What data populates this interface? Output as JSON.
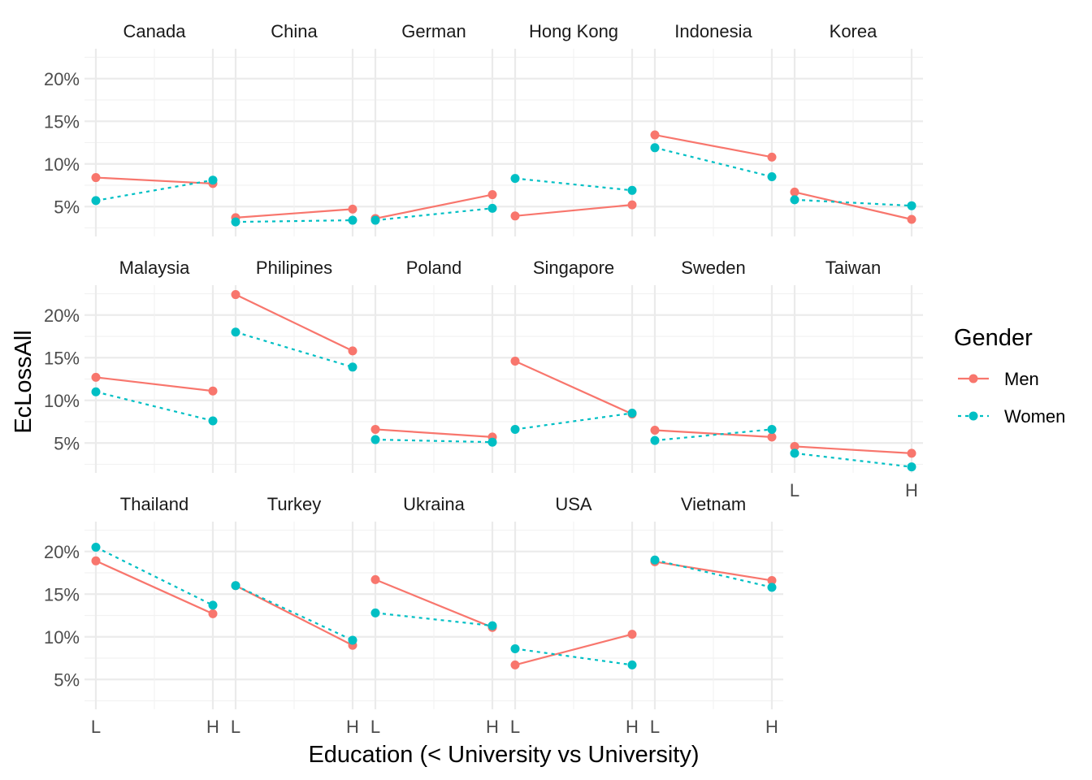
{
  "chart_data": {
    "type": "line",
    "layout": "faceted small multiples, 6 columns x 3 rows",
    "xlabel": "Education (< University vs University)",
    "ylabel": "EcLossAll",
    "x_categories": [
      "L",
      "H"
    ],
    "y_ticks": [
      5,
      10,
      15,
      20
    ],
    "y_tick_labels": [
      "5%",
      "10%",
      "15%",
      "20%"
    ],
    "ylim": [
      1.5,
      23.5
    ],
    "legend": {
      "title": "Gender",
      "position": "right",
      "items": [
        {
          "name": "Men",
          "color": "#F8766D",
          "linetype": "solid"
        },
        {
          "name": "Women",
          "color": "#00BFC4",
          "linetype": "dotted"
        }
      ]
    },
    "facets": [
      {
        "name": "Canada",
        "series": [
          {
            "name": "Men",
            "values": [
              8.4,
              7.7
            ]
          },
          {
            "name": "Women",
            "values": [
              5.7,
              8.1
            ]
          }
        ]
      },
      {
        "name": "China",
        "series": [
          {
            "name": "Men",
            "values": [
              3.7,
              4.7
            ]
          },
          {
            "name": "Women",
            "values": [
              3.2,
              3.4
            ]
          }
        ]
      },
      {
        "name": "German",
        "series": [
          {
            "name": "Men",
            "values": [
              3.6,
              6.4
            ]
          },
          {
            "name": "Women",
            "values": [
              3.4,
              4.8
            ]
          }
        ]
      },
      {
        "name": "Hong Kong",
        "series": [
          {
            "name": "Men",
            "values": [
              3.9,
              5.2
            ]
          },
          {
            "name": "Women",
            "values": [
              8.3,
              6.9
            ]
          }
        ]
      },
      {
        "name": "Indonesia",
        "series": [
          {
            "name": "Men",
            "values": [
              13.4,
              10.8
            ]
          },
          {
            "name": "Women",
            "values": [
              11.9,
              8.5
            ]
          }
        ]
      },
      {
        "name": "Korea",
        "series": [
          {
            "name": "Men",
            "values": [
              6.7,
              3.5
            ]
          },
          {
            "name": "Women",
            "values": [
              5.8,
              5.1
            ]
          }
        ]
      },
      {
        "name": "Malaysia",
        "series": [
          {
            "name": "Men",
            "values": [
              12.7,
              11.1
            ]
          },
          {
            "name": "Women",
            "values": [
              11.0,
              7.6
            ]
          }
        ]
      },
      {
        "name": "Philipines",
        "series": [
          {
            "name": "Men",
            "values": [
              22.4,
              15.8
            ]
          },
          {
            "name": "Women",
            "values": [
              18.0,
              13.9
            ]
          }
        ]
      },
      {
        "name": "Poland",
        "series": [
          {
            "name": "Men",
            "values": [
              6.6,
              5.7
            ]
          },
          {
            "name": "Women",
            "values": [
              5.4,
              5.1
            ]
          }
        ]
      },
      {
        "name": "Singapore",
        "series": [
          {
            "name": "Men",
            "values": [
              14.6,
              8.4
            ]
          },
          {
            "name": "Women",
            "values": [
              6.6,
              8.5
            ]
          }
        ]
      },
      {
        "name": "Sweden",
        "series": [
          {
            "name": "Men",
            "values": [
              6.5,
              5.7
            ]
          },
          {
            "name": "Women",
            "values": [
              5.3,
              6.6
            ]
          }
        ]
      },
      {
        "name": "Taiwan",
        "series": [
          {
            "name": "Men",
            "values": [
              4.6,
              3.8
            ]
          },
          {
            "name": "Women",
            "values": [
              3.8,
              2.2
            ]
          }
        ]
      },
      {
        "name": "Thailand",
        "series": [
          {
            "name": "Men",
            "values": [
              18.9,
              12.7
            ]
          },
          {
            "name": "Women",
            "values": [
              20.5,
              13.7
            ]
          }
        ]
      },
      {
        "name": "Turkey",
        "series": [
          {
            "name": "Men",
            "values": [
              16.0,
              9.0
            ]
          },
          {
            "name": "Women",
            "values": [
              16.0,
              9.6
            ]
          }
        ]
      },
      {
        "name": "Ukraina",
        "series": [
          {
            "name": "Men",
            "values": [
              16.7,
              11.1
            ]
          },
          {
            "name": "Women",
            "values": [
              12.8,
              11.3
            ]
          }
        ]
      },
      {
        "name": "USA",
        "series": [
          {
            "name": "Men",
            "values": [
              6.7,
              10.3
            ]
          },
          {
            "name": "Women",
            "values": [
              8.6,
              6.7
            ]
          }
        ]
      },
      {
        "name": "Vietnam",
        "series": [
          {
            "name": "Men",
            "values": [
              18.8,
              16.6
            ]
          },
          {
            "name": "Women",
            "values": [
              19.0,
              15.8
            ]
          }
        ]
      }
    ]
  }
}
